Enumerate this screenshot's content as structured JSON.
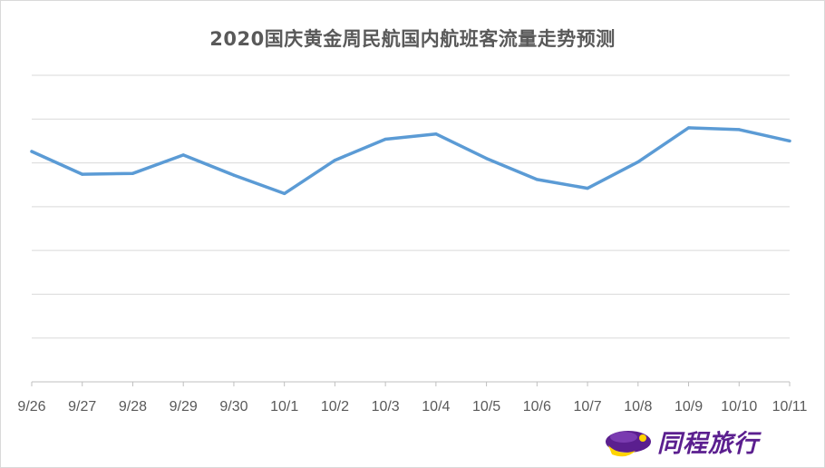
{
  "chart_data": {
    "type": "line",
    "title": "2020国庆黄金周民航国内航班客流量走势预测",
    "xlabel": "",
    "ylabel": "",
    "categories": [
      "9/26",
      "9/27",
      "9/28",
      "9/29",
      "9/30",
      "10/1",
      "10/2",
      "10/3",
      "10/4",
      "10/5",
      "10/6",
      "10/7",
      "10/8",
      "10/9",
      "10/10",
      "10/11"
    ],
    "series": [
      {
        "values": [
          5.26,
          4.74,
          4.76,
          5.18,
          4.72,
          4.3,
          5.06,
          5.54,
          5.66,
          5.1,
          4.62,
          4.42,
          5.02,
          5.8,
          5.76,
          5.5
        ]
      }
    ],
    "ylim": [
      0,
      7
    ],
    "y_ticks_shown": false,
    "grid": true,
    "legend": "none",
    "line_color": "#5b9bd5",
    "grid_color": "#d9d9d9"
  },
  "logo": {
    "text": "同程旅行",
    "icon": "tongcheng-logo-icon",
    "colors": {
      "primary": "#5b1f8f",
      "secondary": "#ffd400"
    }
  }
}
